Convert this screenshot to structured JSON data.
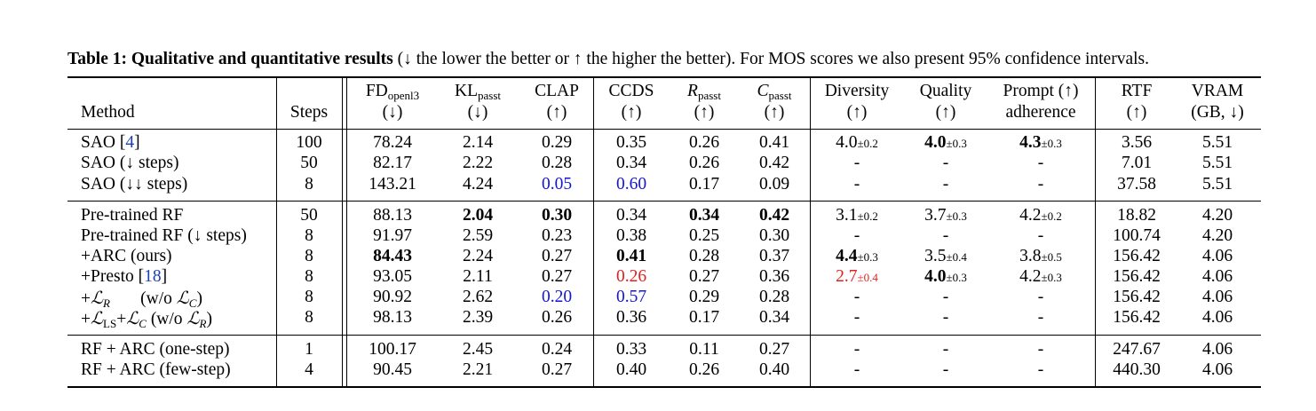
{
  "caption": {
    "label": "Table 1",
    "title": "Qualitative and quantitative results",
    "rest": "(↓ the lower the better or ↑ the higher the better). For MOS scores we also present 95% confidence intervals."
  },
  "headers": {
    "method": "Method",
    "steps": "Steps",
    "fd": {
      "main": "FD",
      "sub": "openl3",
      "dir": "(↓)"
    },
    "kl": {
      "main": "KL",
      "sub": "passt",
      "dir": "(↓)"
    },
    "clap": {
      "main": "CLAP",
      "dir": "(↑)"
    },
    "ccds": {
      "main": "CCDS",
      "dir": "(↑)"
    },
    "r": {
      "main": "R",
      "sub": "passt",
      "dir": "(↑)"
    },
    "c": {
      "main": "C",
      "sub": "passt",
      "dir": "(↑)"
    },
    "diversity": {
      "main": "Diversity",
      "dir": "(↑)"
    },
    "quality": {
      "main": "Quality",
      "dir": "(↑)"
    },
    "prompt": {
      "main": "Prompt (↑)",
      "line2": "adherence"
    },
    "rtf": {
      "main": "RTF",
      "dir": "(↑)"
    },
    "vram": {
      "main": "VRAM",
      "dir": "(GB, ↓)"
    }
  },
  "rows": [
    {
      "method": "SAO ",
      "ref": "4",
      "steps": "100",
      "fd": "78.24",
      "kl": "2.14",
      "clap": "0.29",
      "ccds": "0.35",
      "r": "0.26",
      "c": "0.41",
      "div": "4.0",
      "div_pm": "±0.2",
      "qual": "4.0",
      "qual_pm": "±0.3",
      "prompt": "4.3",
      "prompt_pm": "±0.3",
      "rtf": "3.56",
      "vram": "5.51"
    },
    {
      "method": "SAO (↓ steps)",
      "steps": "50",
      "fd": "82.17",
      "kl": "2.22",
      "clap": "0.28",
      "ccds": "0.34",
      "r": "0.26",
      "c": "0.42",
      "div": "-",
      "qual": "-",
      "prompt": "-",
      "rtf": "7.01",
      "vram": "5.51"
    },
    {
      "method": "SAO (↓↓ steps)",
      "steps": "8",
      "fd": "143.21",
      "kl": "4.24",
      "clap": "0.05",
      "ccds": "0.60",
      "r": "0.17",
      "c": "0.09",
      "div": "-",
      "qual": "-",
      "prompt": "-",
      "rtf": "37.58",
      "vram": "5.51"
    },
    {
      "method": "Pre-trained RF",
      "steps": "50",
      "fd": "88.13",
      "kl": "2.04",
      "clap": "0.30",
      "ccds": "0.34",
      "r": "0.34",
      "c": "0.42",
      "div": "3.1",
      "div_pm": "±0.2",
      "qual": "3.7",
      "qual_pm": "±0.3",
      "prompt": "4.2",
      "prompt_pm": "±0.2",
      "rtf": "18.82",
      "vram": "4.20"
    },
    {
      "method": "Pre-trained RF (↓ steps)",
      "steps": "8",
      "fd": "91.97",
      "kl": "2.59",
      "clap": "0.23",
      "ccds": "0.38",
      "r": "0.25",
      "c": "0.30",
      "div": "-",
      "qual": "-",
      "prompt": "-",
      "rtf": "100.74",
      "vram": "4.20"
    },
    {
      "method": "+ARC (ours)",
      "steps": "8",
      "fd": "84.43",
      "kl": "2.24",
      "clap": "0.27",
      "ccds": "0.41",
      "r": "0.28",
      "c": "0.37",
      "div": "4.4",
      "div_pm": "±0.3",
      "qual": "3.5",
      "qual_pm": "±0.4",
      "prompt": "3.8",
      "prompt_pm": "±0.5",
      "rtf": "156.42",
      "vram": "4.06"
    },
    {
      "method": "+Presto ",
      "ref": "18",
      "steps": "8",
      "fd": "93.05",
      "kl": "2.11",
      "clap": "0.27",
      "ccds": "0.26",
      "r": "0.27",
      "c": "0.36",
      "div": "2.7",
      "div_pm": "±0.4",
      "qual": "4.0",
      "qual_pm": "±0.3",
      "prompt": "4.2",
      "prompt_pm": "±0.3",
      "rtf": "156.42",
      "vram": "4.06"
    },
    {
      "method": "+ℒR (w/o ℒC)",
      "steps": "8",
      "fd": "90.92",
      "kl": "2.62",
      "clap": "0.20",
      "ccds": "0.57",
      "r": "0.29",
      "c": "0.28",
      "div": "-",
      "qual": "-",
      "prompt": "-",
      "rtf": "156.42",
      "vram": "4.06"
    },
    {
      "method": "+ℒLS+ℒC (w/o ℒR)",
      "steps": "8",
      "fd": "98.13",
      "kl": "2.39",
      "clap": "0.26",
      "ccds": "0.36",
      "r": "0.17",
      "c": "0.34",
      "div": "-",
      "qual": "-",
      "prompt": "-",
      "rtf": "156.42",
      "vram": "4.06"
    },
    {
      "method": "RF + ARC (one-step)",
      "steps": "1",
      "fd": "100.17",
      "kl": "2.45",
      "clap": "0.24",
      "ccds": "0.33",
      "r": "0.11",
      "c": "0.27",
      "div": "-",
      "qual": "-",
      "prompt": "-",
      "rtf": "247.67",
      "vram": "4.06"
    },
    {
      "method": "RF + ARC (few-step)",
      "steps": "4",
      "fd": "90.45",
      "kl": "2.21",
      "clap": "0.27",
      "ccds": "0.40",
      "r": "0.26",
      "c": "0.40",
      "div": "-",
      "qual": "-",
      "prompt": "-",
      "rtf": "440.30",
      "vram": "4.06"
    }
  ],
  "colors": {
    "blue": "#1515d8",
    "red": "#e32020",
    "ref": "#1a3fb8"
  }
}
